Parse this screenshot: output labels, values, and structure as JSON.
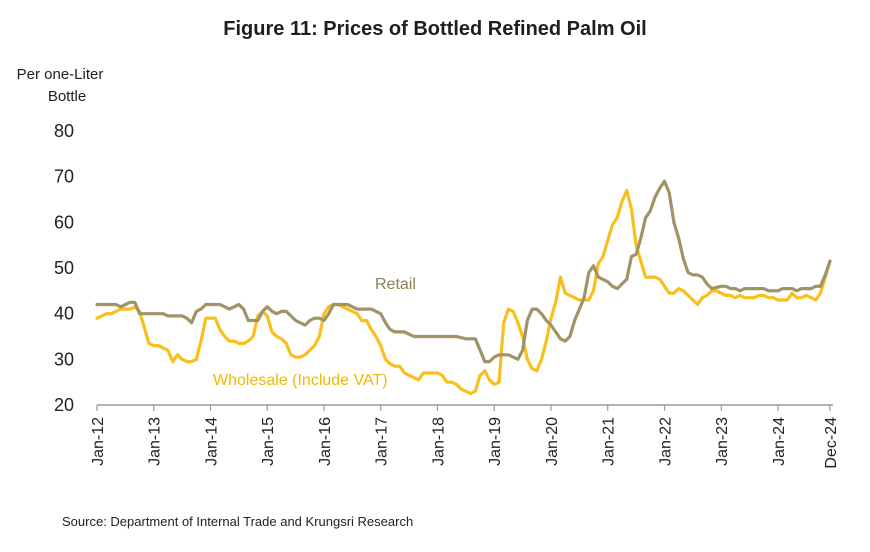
{
  "chart_data": {
    "type": "line",
    "title": "Figure 11: Prices of Bottled Refined Palm Oil",
    "ylabel": [
      "Per one-Liter",
      "Bottle"
    ],
    "source": "Source: Department of Internal Trade and Krungsri Research",
    "ylim": [
      20,
      80
    ],
    "yticks": [
      20,
      30,
      40,
      50,
      60,
      70,
      80
    ],
    "xlim": [
      0,
      155
    ],
    "xticks": [
      {
        "label": "Jan-12",
        "x": 0
      },
      {
        "label": "Jan-13",
        "x": 12
      },
      {
        "label": "Jan-14",
        "x": 24
      },
      {
        "label": "Jan-15",
        "x": 36
      },
      {
        "label": "Jan-16",
        "x": 48
      },
      {
        "label": "Jan-17",
        "x": 60
      },
      {
        "label": "Jan-18",
        "x": 72
      },
      {
        "label": "Jan-19",
        "x": 84
      },
      {
        "label": "Jan-20",
        "x": 96
      },
      {
        "label": "Jan-21",
        "x": 108
      },
      {
        "label": "Jan-22",
        "x": 120
      },
      {
        "label": "Jan-23",
        "x": 132
      },
      {
        "label": "Jan-24",
        "x": 144
      },
      {
        "label": "Dec-24",
        "x": 155
      }
    ],
    "series": [
      {
        "name": "Retail",
        "color": "#a09467",
        "points": [
          [
            0,
            42
          ],
          [
            2,
            42
          ],
          [
            4,
            42
          ],
          [
            5,
            41.5
          ],
          [
            6,
            42
          ],
          [
            7,
            42.5
          ],
          [
            8,
            42.5
          ],
          [
            9,
            40
          ],
          [
            10,
            40
          ],
          [
            12,
            40
          ],
          [
            14,
            40
          ],
          [
            15,
            39.5
          ],
          [
            17,
            39.5
          ],
          [
            18,
            39.5
          ],
          [
            19,
            39
          ],
          [
            20,
            38
          ],
          [
            21,
            40.5
          ],
          [
            22,
            41
          ],
          [
            23,
            42
          ],
          [
            25,
            42
          ],
          [
            26,
            42
          ],
          [
            27,
            41.5
          ],
          [
            28,
            41
          ],
          [
            30,
            42
          ],
          [
            31,
            41
          ],
          [
            32,
            38.5
          ],
          [
            33,
            38.5
          ],
          [
            34,
            38.5
          ],
          [
            35,
            40.5
          ],
          [
            36,
            41.5
          ],
          [
            37,
            40.5
          ],
          [
            38,
            40
          ],
          [
            39,
            40.5
          ],
          [
            40,
            40.5
          ],
          [
            41,
            39.5
          ],
          [
            42,
            38.5
          ],
          [
            43,
            38
          ],
          [
            44,
            37.5
          ],
          [
            45,
            38.5
          ],
          [
            46,
            39
          ],
          [
            47,
            39
          ],
          [
            48,
            38.5
          ],
          [
            49,
            40
          ],
          [
            50,
            42
          ],
          [
            51,
            42
          ],
          [
            52,
            42
          ],
          [
            53,
            42
          ],
          [
            54,
            41.5
          ],
          [
            55,
            41
          ],
          [
            56,
            41
          ],
          [
            58,
            41
          ],
          [
            59,
            40.5
          ],
          [
            60,
            40
          ],
          [
            61,
            38
          ],
          [
            62,
            36.5
          ],
          [
            63,
            36
          ],
          [
            64,
            36
          ],
          [
            65,
            36
          ],
          [
            66,
            35.5
          ],
          [
            67,
            35
          ],
          [
            72,
            35
          ],
          [
            76,
            35
          ],
          [
            78,
            34.5
          ],
          [
            80,
            34.5
          ],
          [
            81,
            32
          ],
          [
            82,
            29.5
          ],
          [
            83,
            29.5
          ],
          [
            84,
            30.5
          ],
          [
            85,
            31
          ],
          [
            86,
            31
          ],
          [
            87,
            31
          ],
          [
            88,
            30.5
          ],
          [
            89,
            30
          ],
          [
            90,
            32
          ],
          [
            91,
            38.5
          ],
          [
            92,
            41
          ],
          [
            93,
            41
          ],
          [
            94,
            40
          ],
          [
            95,
            38.5
          ],
          [
            96,
            37.5
          ],
          [
            97,
            36
          ],
          [
            98,
            34.5
          ],
          [
            99,
            34
          ],
          [
            100,
            35
          ],
          [
            101,
            38.5
          ],
          [
            102,
            41
          ],
          [
            103,
            43.5
          ],
          [
            104,
            49
          ],
          [
            105,
            50.5
          ],
          [
            106,
            48
          ],
          [
            107,
            47.5
          ],
          [
            108,
            47
          ],
          [
            109,
            46
          ],
          [
            110,
            45.5
          ],
          [
            111,
            46.5
          ],
          [
            112,
            47.5
          ],
          [
            113,
            52.5
          ],
          [
            114,
            53
          ],
          [
            115,
            56.5
          ],
          [
            116,
            61
          ],
          [
            117,
            62.5
          ],
          [
            118,
            65.5
          ],
          [
            119,
            67.5
          ],
          [
            120,
            69
          ],
          [
            121,
            66.5
          ],
          [
            122,
            60
          ],
          [
            123,
            56.5
          ],
          [
            124,
            52
          ],
          [
            125,
            49
          ],
          [
            126,
            48.5
          ],
          [
            127,
            48.5
          ],
          [
            128,
            48
          ],
          [
            129,
            46.5
          ],
          [
            130,
            45.5
          ],
          [
            132,
            46
          ],
          [
            133,
            46
          ],
          [
            134,
            45.5
          ],
          [
            135,
            45.5
          ],
          [
            136,
            45
          ],
          [
            137,
            45.5
          ],
          [
            140,
            45.5
          ],
          [
            141,
            45.5
          ],
          [
            142,
            45
          ],
          [
            143,
            45
          ],
          [
            144,
            45
          ],
          [
            145,
            45.5
          ],
          [
            146,
            45.5
          ],
          [
            147,
            45.5
          ],
          [
            148,
            45
          ],
          [
            149,
            45.5
          ],
          [
            150,
            45.5
          ],
          [
            151,
            45.5
          ],
          [
            152,
            46
          ],
          [
            153,
            46
          ],
          [
            154,
            48.5
          ],
          [
            155,
            51.5
          ]
        ]
      },
      {
        "name": "Wholesale (Include VAT)",
        "color": "#fbbf1c",
        "points": [
          [
            0,
            39
          ],
          [
            1,
            39.5
          ],
          [
            2,
            40
          ],
          [
            3,
            40
          ],
          [
            4,
            40.5
          ],
          [
            5,
            41
          ],
          [
            6,
            41
          ],
          [
            7,
            41
          ],
          [
            8,
            41.5
          ],
          [
            9,
            40.5
          ],
          [
            10,
            37
          ],
          [
            11,
            33.5
          ],
          [
            12,
            33
          ],
          [
            13,
            33
          ],
          [
            14,
            32.5
          ],
          [
            15,
            32
          ],
          [
            16,
            29.5
          ],
          [
            17,
            31
          ],
          [
            18,
            30
          ],
          [
            19,
            29.5
          ],
          [
            20,
            29.5
          ],
          [
            21,
            30
          ],
          [
            22,
            34
          ],
          [
            23,
            39
          ],
          [
            24,
            39
          ],
          [
            25,
            39
          ],
          [
            26,
            36.5
          ],
          [
            27,
            35
          ],
          [
            28,
            34
          ],
          [
            29,
            34
          ],
          [
            30,
            33.5
          ],
          [
            31,
            33.5
          ],
          [
            32,
            34
          ],
          [
            33,
            35
          ],
          [
            34,
            39.5
          ],
          [
            35,
            40.5
          ],
          [
            36,
            39.5
          ],
          [
            37,
            36
          ],
          [
            38,
            35
          ],
          [
            39,
            34.5
          ],
          [
            40,
            33.5
          ],
          [
            41,
            31
          ],
          [
            42,
            30.5
          ],
          [
            43,
            30.5
          ],
          [
            44,
            31
          ],
          [
            45,
            32
          ],
          [
            46,
            33
          ],
          [
            47,
            35
          ],
          [
            48,
            40
          ],
          [
            49,
            41.5
          ],
          [
            50,
            42
          ],
          [
            51,
            42
          ],
          [
            52,
            41.5
          ],
          [
            53,
            41
          ],
          [
            54,
            40.5
          ],
          [
            55,
            40
          ],
          [
            56,
            38.5
          ],
          [
            57,
            38.5
          ],
          [
            58,
            36.5
          ],
          [
            59,
            35
          ],
          [
            60,
            33
          ],
          [
            61,
            30
          ],
          [
            62,
            29
          ],
          [
            63,
            28.5
          ],
          [
            64,
            28.5
          ],
          [
            65,
            27
          ],
          [
            66,
            26.5
          ],
          [
            67,
            26
          ],
          [
            68,
            25.5
          ],
          [
            69,
            27
          ],
          [
            70,
            27
          ],
          [
            71,
            27
          ],
          [
            72,
            27
          ],
          [
            73,
            26.5
          ],
          [
            74,
            25
          ],
          [
            75,
            25
          ],
          [
            76,
            24.5
          ],
          [
            77,
            23.5
          ],
          [
            78,
            23
          ],
          [
            79,
            22.5
          ],
          [
            80,
            23
          ],
          [
            81,
            26.5
          ],
          [
            82,
            27.5
          ],
          [
            83,
            25.5
          ],
          [
            84,
            24.5
          ],
          [
            85,
            25
          ],
          [
            86,
            38
          ],
          [
            87,
            41
          ],
          [
            88,
            40.5
          ],
          [
            89,
            38
          ],
          [
            90,
            35
          ],
          [
            91,
            30
          ],
          [
            92,
            28
          ],
          [
            93,
            27.5
          ],
          [
            94,
            30
          ],
          [
            95,
            34
          ],
          [
            96,
            39
          ],
          [
            97,
            42.5
          ],
          [
            98,
            48
          ],
          [
            99,
            44.5
          ],
          [
            100,
            44
          ],
          [
            101,
            43.5
          ],
          [
            102,
            43
          ],
          [
            103,
            43
          ],
          [
            104,
            43
          ],
          [
            105,
            45
          ],
          [
            106,
            51
          ],
          [
            107,
            52.5
          ],
          [
            108,
            56
          ],
          [
            109,
            59.5
          ],
          [
            110,
            61
          ],
          [
            111,
            64.5
          ],
          [
            112,
            67
          ],
          [
            113,
            63
          ],
          [
            114,
            55
          ],
          [
            115,
            51.5
          ],
          [
            116,
            48
          ],
          [
            117,
            48
          ],
          [
            118,
            48
          ],
          [
            119,
            47.5
          ],
          [
            120,
            46
          ],
          [
            121,
            44.5
          ],
          [
            122,
            44.5
          ],
          [
            123,
            45.5
          ],
          [
            124,
            45
          ],
          [
            125,
            44
          ],
          [
            126,
            43
          ],
          [
            127,
            42
          ],
          [
            128,
            43.5
          ],
          [
            129,
            44
          ],
          [
            130,
            45
          ],
          [
            131,
            45
          ],
          [
            132,
            44.5
          ],
          [
            133,
            44
          ],
          [
            134,
            44
          ],
          [
            135,
            43.5
          ],
          [
            136,
            44
          ],
          [
            137,
            43.5
          ],
          [
            138,
            43.5
          ],
          [
            139,
            43.5
          ],
          [
            140,
            44
          ],
          [
            141,
            44
          ],
          [
            142,
            43.5
          ],
          [
            143,
            43.5
          ],
          [
            144,
            43
          ],
          [
            145,
            43
          ],
          [
            146,
            43
          ],
          [
            147,
            44.5
          ],
          [
            148,
            43.5
          ],
          [
            149,
            43.5
          ],
          [
            150,
            44
          ],
          [
            151,
            43.5
          ],
          [
            152,
            43
          ],
          [
            153,
            44.5
          ],
          [
            154,
            48
          ],
          [
            155,
            51.5
          ]
        ]
      }
    ],
    "annotations": [
      {
        "text": "Retail",
        "series": 0
      },
      {
        "text": "Wholesale (Include VAT)",
        "series": 1
      }
    ]
  }
}
